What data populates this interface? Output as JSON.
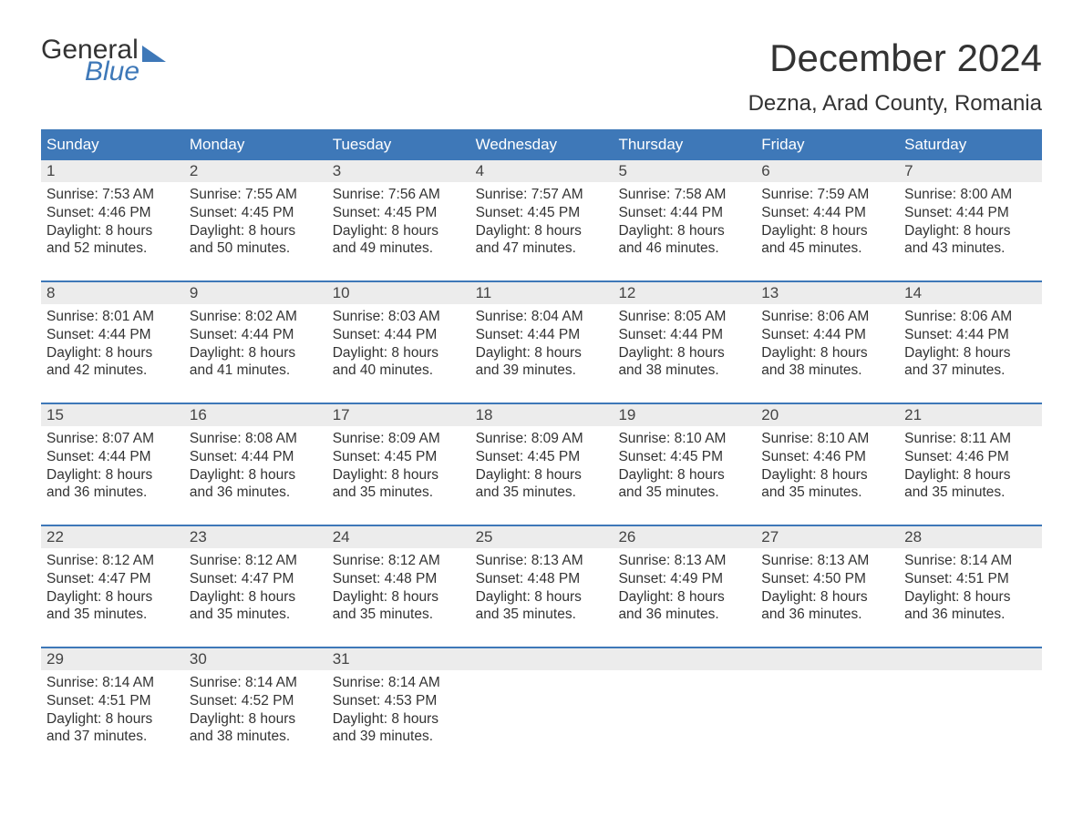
{
  "logo": {
    "line1": "General",
    "line2": "Blue"
  },
  "title": "December 2024",
  "location": "Dezna, Arad County, Romania",
  "colors": {
    "brand_blue": "#3e78b8",
    "header_bg": "#3e78b8",
    "header_text": "#ffffff",
    "daynum_bg": "#ececec",
    "text": "#333333",
    "week_border": "#3e78b8"
  },
  "layout": {
    "columns": 7,
    "rows": 5,
    "month_title_fontsize": 42,
    "location_fontsize": 24,
    "header_fontsize": 17,
    "body_fontsize": 15.5
  },
  "weekdays": [
    "Sunday",
    "Monday",
    "Tuesday",
    "Wednesday",
    "Thursday",
    "Friday",
    "Saturday"
  ],
  "weeks": [
    [
      {
        "n": "1",
        "l1": "Sunrise: 7:53 AM",
        "l2": "Sunset: 4:46 PM",
        "l3": "Daylight: 8 hours",
        "l4": "and 52 minutes."
      },
      {
        "n": "2",
        "l1": "Sunrise: 7:55 AM",
        "l2": "Sunset: 4:45 PM",
        "l3": "Daylight: 8 hours",
        "l4": "and 50 minutes."
      },
      {
        "n": "3",
        "l1": "Sunrise: 7:56 AM",
        "l2": "Sunset: 4:45 PM",
        "l3": "Daylight: 8 hours",
        "l4": "and 49 minutes."
      },
      {
        "n": "4",
        "l1": "Sunrise: 7:57 AM",
        "l2": "Sunset: 4:45 PM",
        "l3": "Daylight: 8 hours",
        "l4": "and 47 minutes."
      },
      {
        "n": "5",
        "l1": "Sunrise: 7:58 AM",
        "l2": "Sunset: 4:44 PM",
        "l3": "Daylight: 8 hours",
        "l4": "and 46 minutes."
      },
      {
        "n": "6",
        "l1": "Sunrise: 7:59 AM",
        "l2": "Sunset: 4:44 PM",
        "l3": "Daylight: 8 hours",
        "l4": "and 45 minutes."
      },
      {
        "n": "7",
        "l1": "Sunrise: 8:00 AM",
        "l2": "Sunset: 4:44 PM",
        "l3": "Daylight: 8 hours",
        "l4": "and 43 minutes."
      }
    ],
    [
      {
        "n": "8",
        "l1": "Sunrise: 8:01 AM",
        "l2": "Sunset: 4:44 PM",
        "l3": "Daylight: 8 hours",
        "l4": "and 42 minutes."
      },
      {
        "n": "9",
        "l1": "Sunrise: 8:02 AM",
        "l2": "Sunset: 4:44 PM",
        "l3": "Daylight: 8 hours",
        "l4": "and 41 minutes."
      },
      {
        "n": "10",
        "l1": "Sunrise: 8:03 AM",
        "l2": "Sunset: 4:44 PM",
        "l3": "Daylight: 8 hours",
        "l4": "and 40 minutes."
      },
      {
        "n": "11",
        "l1": "Sunrise: 8:04 AM",
        "l2": "Sunset: 4:44 PM",
        "l3": "Daylight: 8 hours",
        "l4": "and 39 minutes."
      },
      {
        "n": "12",
        "l1": "Sunrise: 8:05 AM",
        "l2": "Sunset: 4:44 PM",
        "l3": "Daylight: 8 hours",
        "l4": "and 38 minutes."
      },
      {
        "n": "13",
        "l1": "Sunrise: 8:06 AM",
        "l2": "Sunset: 4:44 PM",
        "l3": "Daylight: 8 hours",
        "l4": "and 38 minutes."
      },
      {
        "n": "14",
        "l1": "Sunrise: 8:06 AM",
        "l2": "Sunset: 4:44 PM",
        "l3": "Daylight: 8 hours",
        "l4": "and 37 minutes."
      }
    ],
    [
      {
        "n": "15",
        "l1": "Sunrise: 8:07 AM",
        "l2": "Sunset: 4:44 PM",
        "l3": "Daylight: 8 hours",
        "l4": "and 36 minutes."
      },
      {
        "n": "16",
        "l1": "Sunrise: 8:08 AM",
        "l2": "Sunset: 4:44 PM",
        "l3": "Daylight: 8 hours",
        "l4": "and 36 minutes."
      },
      {
        "n": "17",
        "l1": "Sunrise: 8:09 AM",
        "l2": "Sunset: 4:45 PM",
        "l3": "Daylight: 8 hours",
        "l4": "and 35 minutes."
      },
      {
        "n": "18",
        "l1": "Sunrise: 8:09 AM",
        "l2": "Sunset: 4:45 PM",
        "l3": "Daylight: 8 hours",
        "l4": "and 35 minutes."
      },
      {
        "n": "19",
        "l1": "Sunrise: 8:10 AM",
        "l2": "Sunset: 4:45 PM",
        "l3": "Daylight: 8 hours",
        "l4": "and 35 minutes."
      },
      {
        "n": "20",
        "l1": "Sunrise: 8:10 AM",
        "l2": "Sunset: 4:46 PM",
        "l3": "Daylight: 8 hours",
        "l4": "and 35 minutes."
      },
      {
        "n": "21",
        "l1": "Sunrise: 8:11 AM",
        "l2": "Sunset: 4:46 PM",
        "l3": "Daylight: 8 hours",
        "l4": "and 35 minutes."
      }
    ],
    [
      {
        "n": "22",
        "l1": "Sunrise: 8:12 AM",
        "l2": "Sunset: 4:47 PM",
        "l3": "Daylight: 8 hours",
        "l4": "and 35 minutes."
      },
      {
        "n": "23",
        "l1": "Sunrise: 8:12 AM",
        "l2": "Sunset: 4:47 PM",
        "l3": "Daylight: 8 hours",
        "l4": "and 35 minutes."
      },
      {
        "n": "24",
        "l1": "Sunrise: 8:12 AM",
        "l2": "Sunset: 4:48 PM",
        "l3": "Daylight: 8 hours",
        "l4": "and 35 minutes."
      },
      {
        "n": "25",
        "l1": "Sunrise: 8:13 AM",
        "l2": "Sunset: 4:48 PM",
        "l3": "Daylight: 8 hours",
        "l4": "and 35 minutes."
      },
      {
        "n": "26",
        "l1": "Sunrise: 8:13 AM",
        "l2": "Sunset: 4:49 PM",
        "l3": "Daylight: 8 hours",
        "l4": "and 36 minutes."
      },
      {
        "n": "27",
        "l1": "Sunrise: 8:13 AM",
        "l2": "Sunset: 4:50 PM",
        "l3": "Daylight: 8 hours",
        "l4": "and 36 minutes."
      },
      {
        "n": "28",
        "l1": "Sunrise: 8:14 AM",
        "l2": "Sunset: 4:51 PM",
        "l3": "Daylight: 8 hours",
        "l4": "and 36 minutes."
      }
    ],
    [
      {
        "n": "29",
        "l1": "Sunrise: 8:14 AM",
        "l2": "Sunset: 4:51 PM",
        "l3": "Daylight: 8 hours",
        "l4": "and 37 minutes."
      },
      {
        "n": "30",
        "l1": "Sunrise: 8:14 AM",
        "l2": "Sunset: 4:52 PM",
        "l3": "Daylight: 8 hours",
        "l4": "and 38 minutes."
      },
      {
        "n": "31",
        "l1": "Sunrise: 8:14 AM",
        "l2": "Sunset: 4:53 PM",
        "l3": "Daylight: 8 hours",
        "l4": "and 39 minutes."
      },
      {
        "n": "",
        "l1": "",
        "l2": "",
        "l3": "",
        "l4": ""
      },
      {
        "n": "",
        "l1": "",
        "l2": "",
        "l3": "",
        "l4": ""
      },
      {
        "n": "",
        "l1": "",
        "l2": "",
        "l3": "",
        "l4": ""
      },
      {
        "n": "",
        "l1": "",
        "l2": "",
        "l3": "",
        "l4": ""
      }
    ]
  ]
}
